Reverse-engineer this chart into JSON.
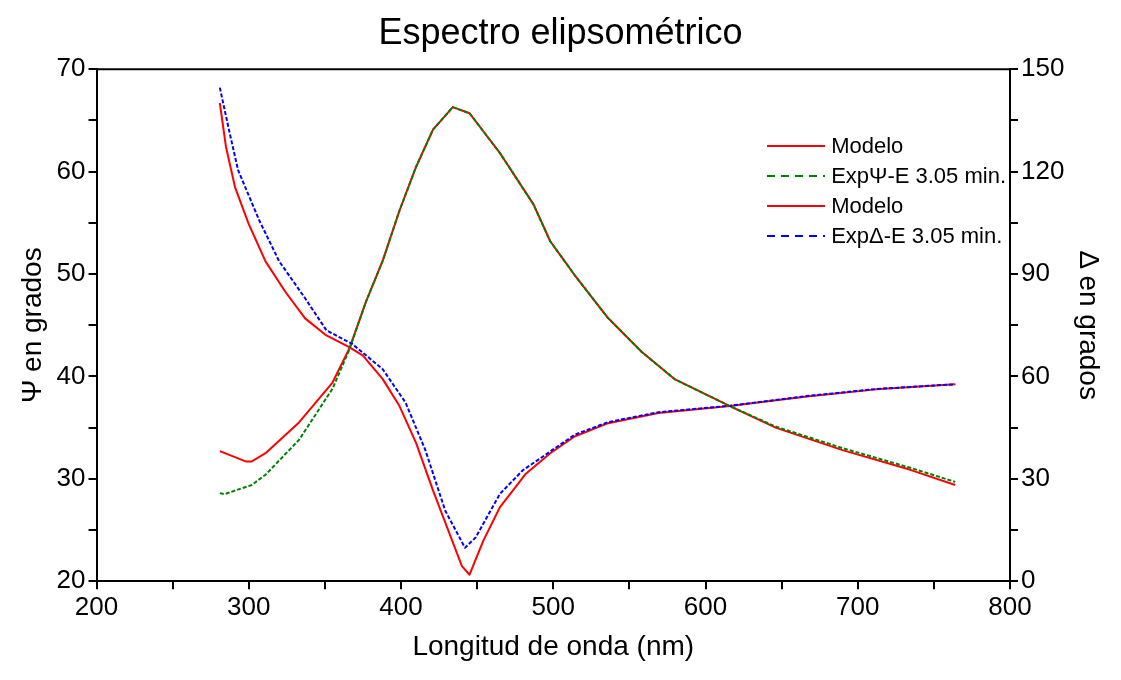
{
  "chart_data": {
    "type": "line",
    "title": "Espectro elipsométrico",
    "xlabel": "Longitud de onda (nm)",
    "ylabel": "Ψ en grados",
    "y2label": "Δ en grados",
    "xlim": [
      200,
      800
    ],
    "xticks": [
      200,
      {
        "value": 250,
        "label": null
      },
      300,
      {
        "value": 350,
        "label": null
      },
      400,
      {
        "value": 450,
        "label": null
      },
      500,
      {
        "value": 550,
        "label": null
      },
      600,
      {
        "value": 650,
        "label": null
      },
      700,
      {
        "value": 750,
        "label": null
      },
      800
    ],
    "ylim": [
      20,
      70
    ],
    "yticks": [
      20,
      {
        "value": 25,
        "label": null
      },
      30,
      {
        "value": 35,
        "label": null
      },
      40,
      {
        "value": 45,
        "label": null
      },
      50,
      {
        "value": 55,
        "label": null
      },
      60,
      {
        "value": 65,
        "label": null
      },
      70
    ],
    "y2lim": [
      0,
      150
    ],
    "y2ticks": [
      0,
      {
        "value": 15,
        "label": null
      },
      30,
      {
        "value": 45,
        "label": null
      },
      60,
      {
        "value": 75,
        "label": null
      },
      90,
      {
        "value": 105,
        "label": null
      },
      120,
      {
        "value": 135,
        "label": null
      },
      150
    ],
    "grid": false,
    "legend": "top right",
    "marker": "none",
    "series": [
      {
        "name": "Modelo",
        "color": "#ff0000",
        "line_style": "solid",
        "x": [
          281,
          298,
          302,
          311,
          333,
          355,
          366,
          377,
          388,
          399,
          410,
          421,
          434,
          445,
          465,
          487,
          498,
          514,
          536,
          558,
          580,
          616,
          646,
          690,
          734,
          764
        ],
        "values": [
          32.7,
          31.7,
          31.7,
          32.5,
          35.5,
          39.4,
          42.7,
          47.3,
          51.3,
          56.2,
          60.5,
          64.1,
          66.3,
          65.7,
          61.8,
          56.8,
          53.2,
          49.9,
          45.7,
          42.4,
          39.7,
          37.1,
          35,
          32.8,
          30.9,
          29.4
        ]
      },
      {
        "name": "ExpΨ-E 3.05 min.",
        "color": "#008000",
        "line_style": "dashed",
        "x": [
          281,
          284,
          302,
          311,
          333,
          355,
          366,
          377,
          388,
          399,
          410,
          421,
          434,
          445,
          465,
          487,
          498,
          514,
          536,
          558,
          580,
          616,
          646,
          690,
          734,
          764
        ],
        "values": [
          28.6,
          28.5,
          29.4,
          30.4,
          33.8,
          38.8,
          42.6,
          47.3,
          51.3,
          56.2,
          60.5,
          64.1,
          66.3,
          65.7,
          61.8,
          56.8,
          53.2,
          49.9,
          45.7,
          42.4,
          39.7,
          37.1,
          35.1,
          33,
          31.1,
          29.7
        ]
      },
      {
        "name": "Modelo",
        "color": "#ff0000",
        "line_style": "solid",
        "axis": "y2",
        "x": [
          281,
          285,
          291,
          300,
          311,
          324,
          337,
          351,
          366,
          375,
          388,
          399,
          410,
          421,
          440,
          445,
          454,
          465,
          482,
          498,
          514,
          536,
          569,
          616,
          668,
          712,
          764
        ],
        "values": [
          140.1,
          127.3,
          115.4,
          104.6,
          93.7,
          84.8,
          77,
          72,
          68.6,
          66.1,
          59.2,
          51.3,
          40.4,
          26.6,
          4.4,
          1.9,
          11.8,
          21.7,
          31.5,
          37.5,
          42.4,
          46.3,
          49.3,
          51.3,
          54.2,
          56.2,
          57.7
        ]
      },
      {
        "name": "ExpΔ-E 3.05 min.",
        "color": "#0000ff",
        "line_style": "dashed",
        "axis": "y2",
        "x": [
          281,
          287,
          293,
          307,
          320,
          337,
          351,
          368,
          388,
          403,
          416,
          429,
          442,
          449,
          465,
          480,
          498,
          514,
          536,
          569,
          616,
          668,
          712,
          764
        ],
        "values": [
          144.6,
          132.2,
          120.4,
          105.6,
          93.7,
          82.9,
          73.5,
          69.5,
          62.1,
          52.3,
          38.4,
          20.7,
          9.8,
          12.8,
          25.6,
          32.5,
          38,
          42.9,
          46.6,
          49.5,
          51.4,
          54.3,
          56.3,
          57.7
        ]
      }
    ]
  }
}
